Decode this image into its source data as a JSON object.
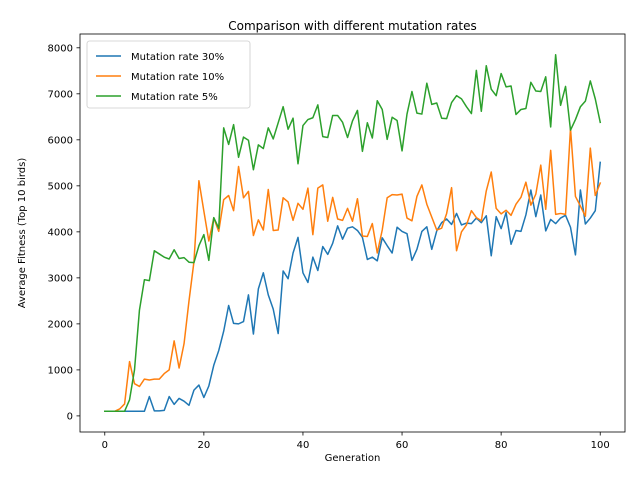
{
  "chart_data": {
    "type": "line",
    "title": "Comparison with different mutation rates",
    "xlabel": "Generation",
    "ylabel": "Average Fitness (Top 10 birds)",
    "xlim": [
      -5,
      105
    ],
    "ylim": [
      -350,
      8300
    ],
    "xticks": [
      0,
      20,
      40,
      60,
      80,
      100
    ],
    "yticks": [
      0,
      1000,
      2000,
      3000,
      4000,
      5000,
      6000,
      7000,
      8000
    ],
    "grid": false,
    "legend_position": "top-left",
    "series": [
      {
        "name": "Mutation rate 30%",
        "color": "#1f77b4",
        "values": [
          100,
          100,
          100,
          100,
          100,
          100,
          100,
          100,
          100,
          420,
          110,
          110,
          120,
          420,
          250,
          380,
          320,
          230,
          560,
          670,
          400,
          650,
          1100,
          1420,
          1840,
          2400,
          2010,
          2000,
          2050,
          2630,
          1780,
          2760,
          3110,
          2630,
          2320,
          1790,
          3150,
          2980,
          3540,
          3880,
          3110,
          2900,
          3450,
          3160,
          3680,
          3510,
          3750,
          4130,
          3840,
          4080,
          4110,
          4030,
          3880,
          3400,
          3450,
          3370,
          3870,
          3700,
          3540,
          4100,
          4010,
          3960,
          3380,
          3620,
          4010,
          4110,
          3620,
          4020,
          4200,
          4280,
          4160,
          4400,
          4150,
          4190,
          4180,
          4300,
          4200,
          4350,
          3480,
          4330,
          4070,
          4420,
          3730,
          4030,
          4010,
          4370,
          4910,
          4330,
          4800,
          4020,
          4270,
          4180,
          4300,
          4360,
          4100,
          3500,
          4910,
          4170,
          4300,
          4460,
          5510
        ]
      },
      {
        "name": "Mutation rate 10%",
        "color": "#ff7f0e",
        "values": [
          100,
          100,
          100,
          150,
          260,
          1180,
          700,
          640,
          800,
          780,
          800,
          800,
          920,
          1000,
          1630,
          1040,
          1570,
          2500,
          3350,
          5110,
          4450,
          3800,
          4300,
          4010,
          4700,
          4790,
          4460,
          5420,
          4740,
          4880,
          3920,
          4260,
          4040,
          4920,
          4030,
          4040,
          4740,
          4650,
          4250,
          4620,
          4490,
          4950,
          3940,
          4950,
          5020,
          4230,
          4750,
          4280,
          4250,
          4510,
          4230,
          4720,
          3910,
          3900,
          4180,
          3540,
          4040,
          4740,
          4810,
          4800,
          4820,
          4300,
          4240,
          4770,
          5020,
          4600,
          4320,
          4040,
          4080,
          4400,
          4960,
          3590,
          4000,
          4150,
          4460,
          4310,
          4240,
          4890,
          5300,
          4510,
          4390,
          4470,
          4360,
          4600,
          4750,
          5080,
          4580,
          4820,
          5450,
          4490,
          5770,
          4380,
          4400,
          4380,
          6250,
          4770,
          4560,
          4340,
          5820,
          4790,
          5060
        ]
      },
      {
        "name": "Mutation rate 5%",
        "color": "#2ca02c",
        "values": [
          100,
          100,
          100,
          100,
          100,
          350,
          1000,
          2300,
          2960,
          2940,
          3590,
          3520,
          3450,
          3410,
          3610,
          3420,
          3440,
          3340,
          3330,
          3700,
          3940,
          3380,
          4310,
          4080,
          6260,
          5900,
          6330,
          5620,
          6060,
          5990,
          5350,
          5890,
          5810,
          6260,
          6020,
          6370,
          6720,
          6230,
          6470,
          5480,
          6310,
          6440,
          6480,
          6760,
          6070,
          6050,
          6530,
          6530,
          6380,
          6050,
          6410,
          6640,
          5750,
          6370,
          6040,
          6850,
          6660,
          6010,
          6490,
          6420,
          5760,
          6560,
          7050,
          6580,
          6560,
          7230,
          6770,
          6800,
          6470,
          6460,
          6810,
          6960,
          6890,
          6720,
          6570,
          7510,
          6620,
          7610,
          7100,
          6960,
          7440,
          7150,
          7170,
          6550,
          6660,
          6680,
          7250,
          7060,
          7050,
          7370,
          6280,
          7850,
          6750,
          7160,
          6210,
          6440,
          6720,
          6840,
          7280,
          6890,
          6380
        ]
      }
    ]
  }
}
